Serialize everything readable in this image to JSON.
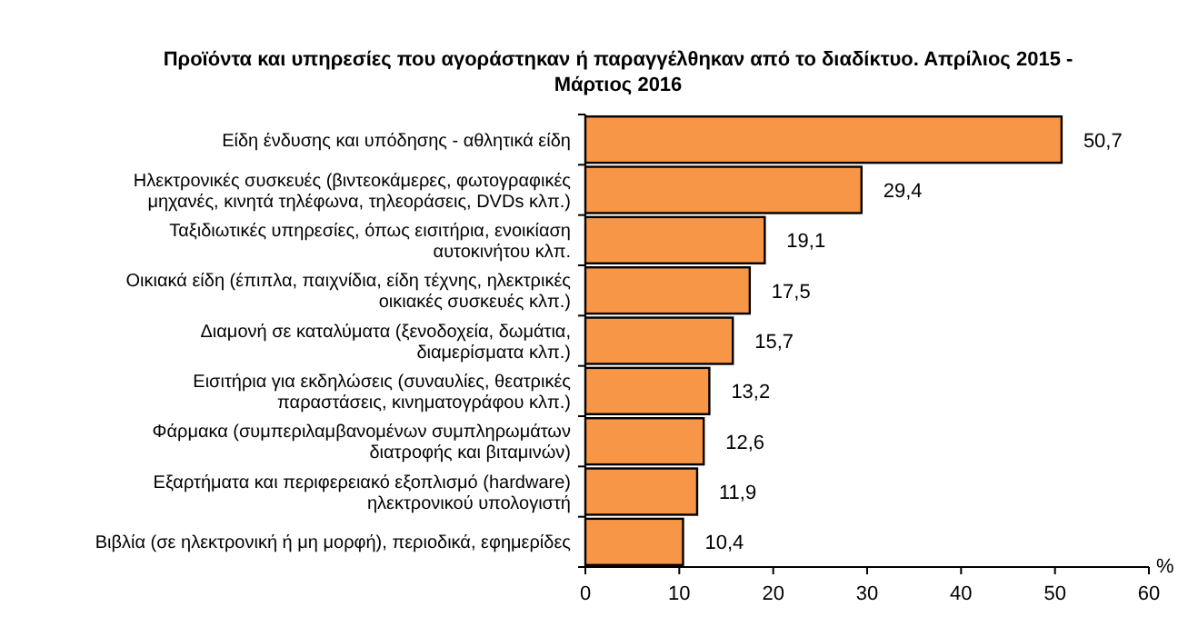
{
  "chart_data": {
    "type": "bar",
    "orientation": "horizontal",
    "title": "Προϊόντα και υπηρεσίες που αγοράστηκαν ή παραγγέλθηκαν από το διαδίκτυο. Απρίλιος 2015 - Μάρτιος 2016",
    "xlabel": "%",
    "categories": [
      "Είδη ένδυσης και υπόδησης - αθλητικά είδη",
      "Ηλεκτρονικές συσκευές (βιντεοκάμερες, φωτογραφικές μηχανές, κινητά τηλέφωνα, τηλεοράσεις, DVDs κλπ.)",
      "Ταξιδιωτικές υπηρεσίες, όπως εισιτήρια, ενοικίαση αυτοκινήτου κλπ.",
      "Οικιακά είδη (έπιπλα, παιχνίδια, είδη τέχνης, ηλεκτρικές οικιακές συσκευές κλπ.)",
      "Διαμονή σε καταλύματα (ξενοδοχεία, δωμάτια, διαμερίσματα κλπ.)",
      "Εισιτήρια για εκδηλώσεις (συναυλίες, θεατρικές παραστάσεις, κινηματογράφου κλπ.)",
      "Φάρμακα (συμπεριλαμβανομένων συμπληρωμάτων διατροφής και βιταμινών)",
      "Εξαρτήματα και περιφερειακό εξοπλισμό (hardware) ηλεκτρονικού υπολογιστή",
      "Βιβλία (σε ηλεκτρονική ή μη μορφή), περιοδικά, εφημερίδες"
    ],
    "values": [
      50.7,
      29.4,
      19.1,
      17.5,
      15.7,
      13.2,
      12.6,
      11.9,
      10.4
    ],
    "value_labels": [
      "50,7",
      "29,4",
      "19,1",
      "17,5",
      "15,7",
      "13,2",
      "12,6",
      "11,9",
      "10,4"
    ],
    "color": "#f79646",
    "xlim": [
      0,
      60
    ],
    "xticks": [
      0,
      10,
      20,
      30,
      40,
      50,
      60
    ],
    "grid": false
  }
}
